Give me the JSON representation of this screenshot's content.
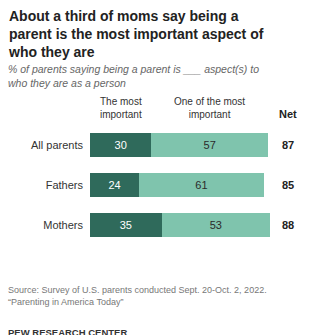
{
  "chart_data": {
    "type": "bar",
    "orientation": "horizontal",
    "stacked": true,
    "data_labels": true,
    "tick_labels": "y",
    "title": "About a third of moms say being a parent is the most important aspect of who they are",
    "subtitle": "% of parents saying being a parent is ___ aspect(s) to who they are as a person",
    "categories": [
      "All parents",
      "Fathers",
      "Mothers"
    ],
    "series": [
      {
        "name": "The most important",
        "color": "#2f6a5b",
        "values": [
          30,
          24,
          35
        ]
      },
      {
        "name": "One of the most important",
        "color": "#7fc4ad",
        "values": [
          57,
          61,
          53
        ]
      }
    ],
    "net": {
      "label": "Net",
      "values": [
        87,
        85,
        88
      ]
    },
    "xlim": [
      0,
      88
    ],
    "notes": [
      "Source: Survey of U.S. parents conducted Sept. 20-Oct. 2, 2022.",
      "“Parenting in America Today”"
    ],
    "credit": "PEW RESEARCH CENTER"
  }
}
